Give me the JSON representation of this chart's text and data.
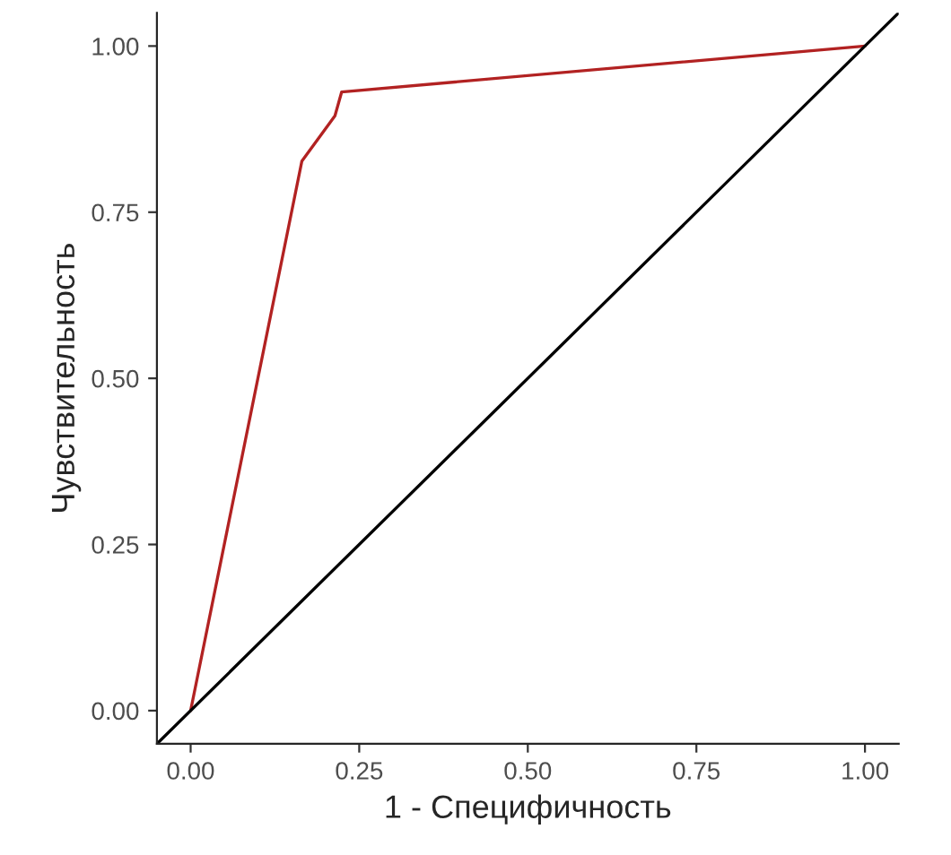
{
  "chart_data": {
    "type": "line",
    "xlabel": "1 - Специфичность",
    "ylabel": "Чувствительность",
    "series": [
      {
        "color": "#b22222",
        "x": [
          0,
          0.165,
          0.214,
          0.224,
          1
        ],
        "values": [
          0,
          0.827,
          0.895,
          0.931,
          1
        ]
      },
      {
        "color": "#000000",
        "x": [
          -0.05,
          1.05
        ],
        "values": [
          -0.05,
          1.05
        ]
      }
    ],
    "xlim": [
      -0.05,
      1.05
    ],
    "ylim": [
      -0.05,
      1.05
    ],
    "xticks": [
      {
        "value": 0,
        "label": "0.00"
      },
      {
        "value": 0.25,
        "label": "0.25"
      },
      {
        "value": 0.5,
        "label": "0.50"
      },
      {
        "value": 0.75,
        "label": "0.75"
      },
      {
        "value": 1,
        "label": "1.00"
      }
    ],
    "yticks": [
      {
        "value": 0,
        "label": "0.00"
      },
      {
        "value": 0.25,
        "label": "0.25"
      },
      {
        "value": 0.5,
        "label": "0.50"
      },
      {
        "value": 0.75,
        "label": "0.75"
      },
      {
        "value": 1,
        "label": "1.00"
      }
    ],
    "grid": false
  }
}
